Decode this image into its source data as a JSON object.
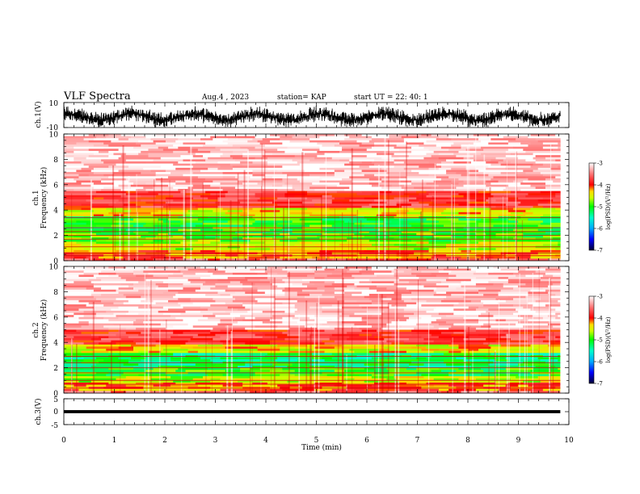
{
  "header": {
    "title": "VLF Spectra",
    "date": "Aug.4 , 2023",
    "station": "station= KAP",
    "start": "start UT = 22: 40: 1"
  },
  "chart_data": [
    {
      "type": "line",
      "name": "waveform-ch1",
      "ylabel": "ch.1(V)",
      "xlim": [
        0,
        10
      ],
      "ylim": [
        -10,
        10
      ],
      "ytick_labels": [
        "10",
        "-10"
      ],
      "data_xmax": 9.83,
      "envelope": {
        "center_range": [
          -4,
          1
        ],
        "amplitude": 7,
        "slow_period_min": 1.25
      },
      "color": "#000000"
    },
    {
      "type": "heatmap",
      "name": "spectrogram-ch1",
      "ylabel_line1": "ch.1",
      "ylabel_line2": "Frequency (kHz)",
      "xlim": [
        0,
        10
      ],
      "ylim": [
        0,
        10
      ],
      "ytick_labels": [
        "0",
        "2",
        "4",
        "6",
        "8",
        "10"
      ],
      "data_xmax": 9.83,
      "bands_khz": [
        {
          "from": 0.0,
          "to": 0.25,
          "level": -3.6
        },
        {
          "from": 0.25,
          "to": 0.9,
          "level": -4.1
        },
        {
          "from": 0.9,
          "to": 1.5,
          "level": -4.6
        },
        {
          "from": 1.5,
          "to": 2.2,
          "level": -4.9
        },
        {
          "from": 2.2,
          "to": 3.5,
          "level": -5.0
        },
        {
          "from": 3.5,
          "to": 4.2,
          "level": -4.4
        },
        {
          "from": 4.2,
          "to": 5.5,
          "level": -3.8
        },
        {
          "from": 5.5,
          "to": 10.0,
          "level": -3.2
        }
      ],
      "lines_khz": [
        0.4,
        0.6,
        1.1,
        1.7,
        2.0,
        2.3,
        2.6,
        3.4
      ]
    },
    {
      "type": "heatmap",
      "name": "spectrogram-ch2",
      "ylabel_line1": "ch.2",
      "ylabel_line2": "Frequency (kHz)",
      "xlim": [
        0,
        10
      ],
      "ylim": [
        0,
        10
      ],
      "ytick_labels": [
        "0",
        "2",
        "4",
        "6",
        "8",
        "10"
      ],
      "data_xmax": 9.83,
      "bands_khz": [
        {
          "from": 0.0,
          "to": 0.25,
          "level": -3.6
        },
        {
          "from": 0.25,
          "to": 0.8,
          "level": -4.1
        },
        {
          "from": 0.8,
          "to": 1.3,
          "level": -4.6
        },
        {
          "from": 1.3,
          "to": 2.0,
          "level": -5.0
        },
        {
          "from": 2.0,
          "to": 3.1,
          "level": -5.2
        },
        {
          "from": 3.1,
          "to": 3.8,
          "level": -4.4
        },
        {
          "from": 3.8,
          "to": 5.0,
          "level": -3.8
        },
        {
          "from": 5.0,
          "to": 10.0,
          "level": -3.2
        }
      ],
      "lines_khz": [
        0.4,
        0.7,
        1.0,
        1.6,
        2.0,
        2.4,
        2.9
      ]
    },
    {
      "type": "line",
      "name": "waveform-ch3",
      "ylabel": "ch.3(V)",
      "xlim": [
        0,
        10
      ],
      "ylim": [
        -5,
        5
      ],
      "ytick_labels": [
        "5",
        "0",
        "-5"
      ],
      "data_xmax": 9.83,
      "envelope": {
        "center": 0,
        "amplitude": 0.6
      },
      "color": "#000000"
    },
    {
      "type": "colorbar",
      "name": "colorbar",
      "label": "log(PSD)(V²/Hz)",
      "range": [
        -7,
        -3
      ],
      "tick_labels": [
        "-3",
        "-4",
        "-5",
        "-6",
        "-7"
      ],
      "stops": [
        {
          "v": -7.0,
          "color": "#000033"
        },
        {
          "v": -6.5,
          "color": "#0000ff"
        },
        {
          "v": -6.0,
          "color": "#00aaff"
        },
        {
          "v": -5.5,
          "color": "#00ffcc"
        },
        {
          "v": -5.0,
          "color": "#00ff00"
        },
        {
          "v": -4.6,
          "color": "#ccff00"
        },
        {
          "v": -4.3,
          "color": "#ffdd00"
        },
        {
          "v": -4.0,
          "color": "#ff0000"
        },
        {
          "v": -3.5,
          "color": "#ff7777"
        },
        {
          "v": -3.0,
          "color": "#ffffff"
        }
      ]
    }
  ],
  "xaxis": {
    "label": "Time (min)",
    "ticks": [
      0,
      1,
      2,
      3,
      4,
      5,
      6,
      7,
      8,
      9,
      10
    ],
    "tick_labels": [
      "0",
      "1",
      "2",
      "3",
      "4",
      "5",
      "6",
      "7",
      "8",
      "9",
      "10"
    ]
  }
}
